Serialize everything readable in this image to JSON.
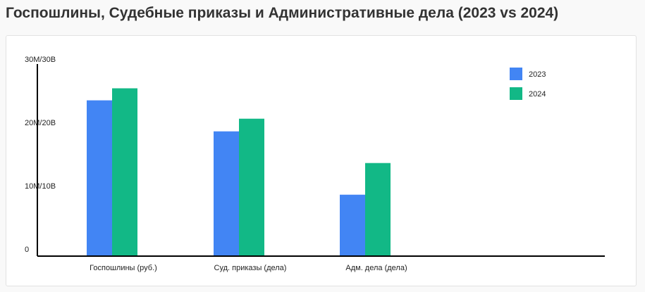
{
  "page": {
    "title": "Госпошлины, Судебные приказы и Административные дела (2023 vs 2024)"
  },
  "chart_data": {
    "type": "bar",
    "categories": [
      "Госпошлины (руб.)",
      "Суд. приказы (дела)",
      "Адм. дела (дела)"
    ],
    "series": [
      {
        "name": "2023",
        "color": "#4285f4",
        "values": [
          24.6,
          19.7,
          9.7
        ]
      },
      {
        "name": "2024",
        "color": "#12b886",
        "values": [
          26.5,
          21.7,
          14.7
        ]
      }
    ],
    "yticks": [
      {
        "value": 0,
        "label": "0"
      },
      {
        "value": 10,
        "label": "10M/10B"
      },
      {
        "value": 20,
        "label": "20M/20B"
      },
      {
        "value": 30,
        "label": "30M/30B"
      }
    ],
    "ylim": [
      0,
      30
    ],
    "legend_position": "top-right",
    "grid": false
  }
}
